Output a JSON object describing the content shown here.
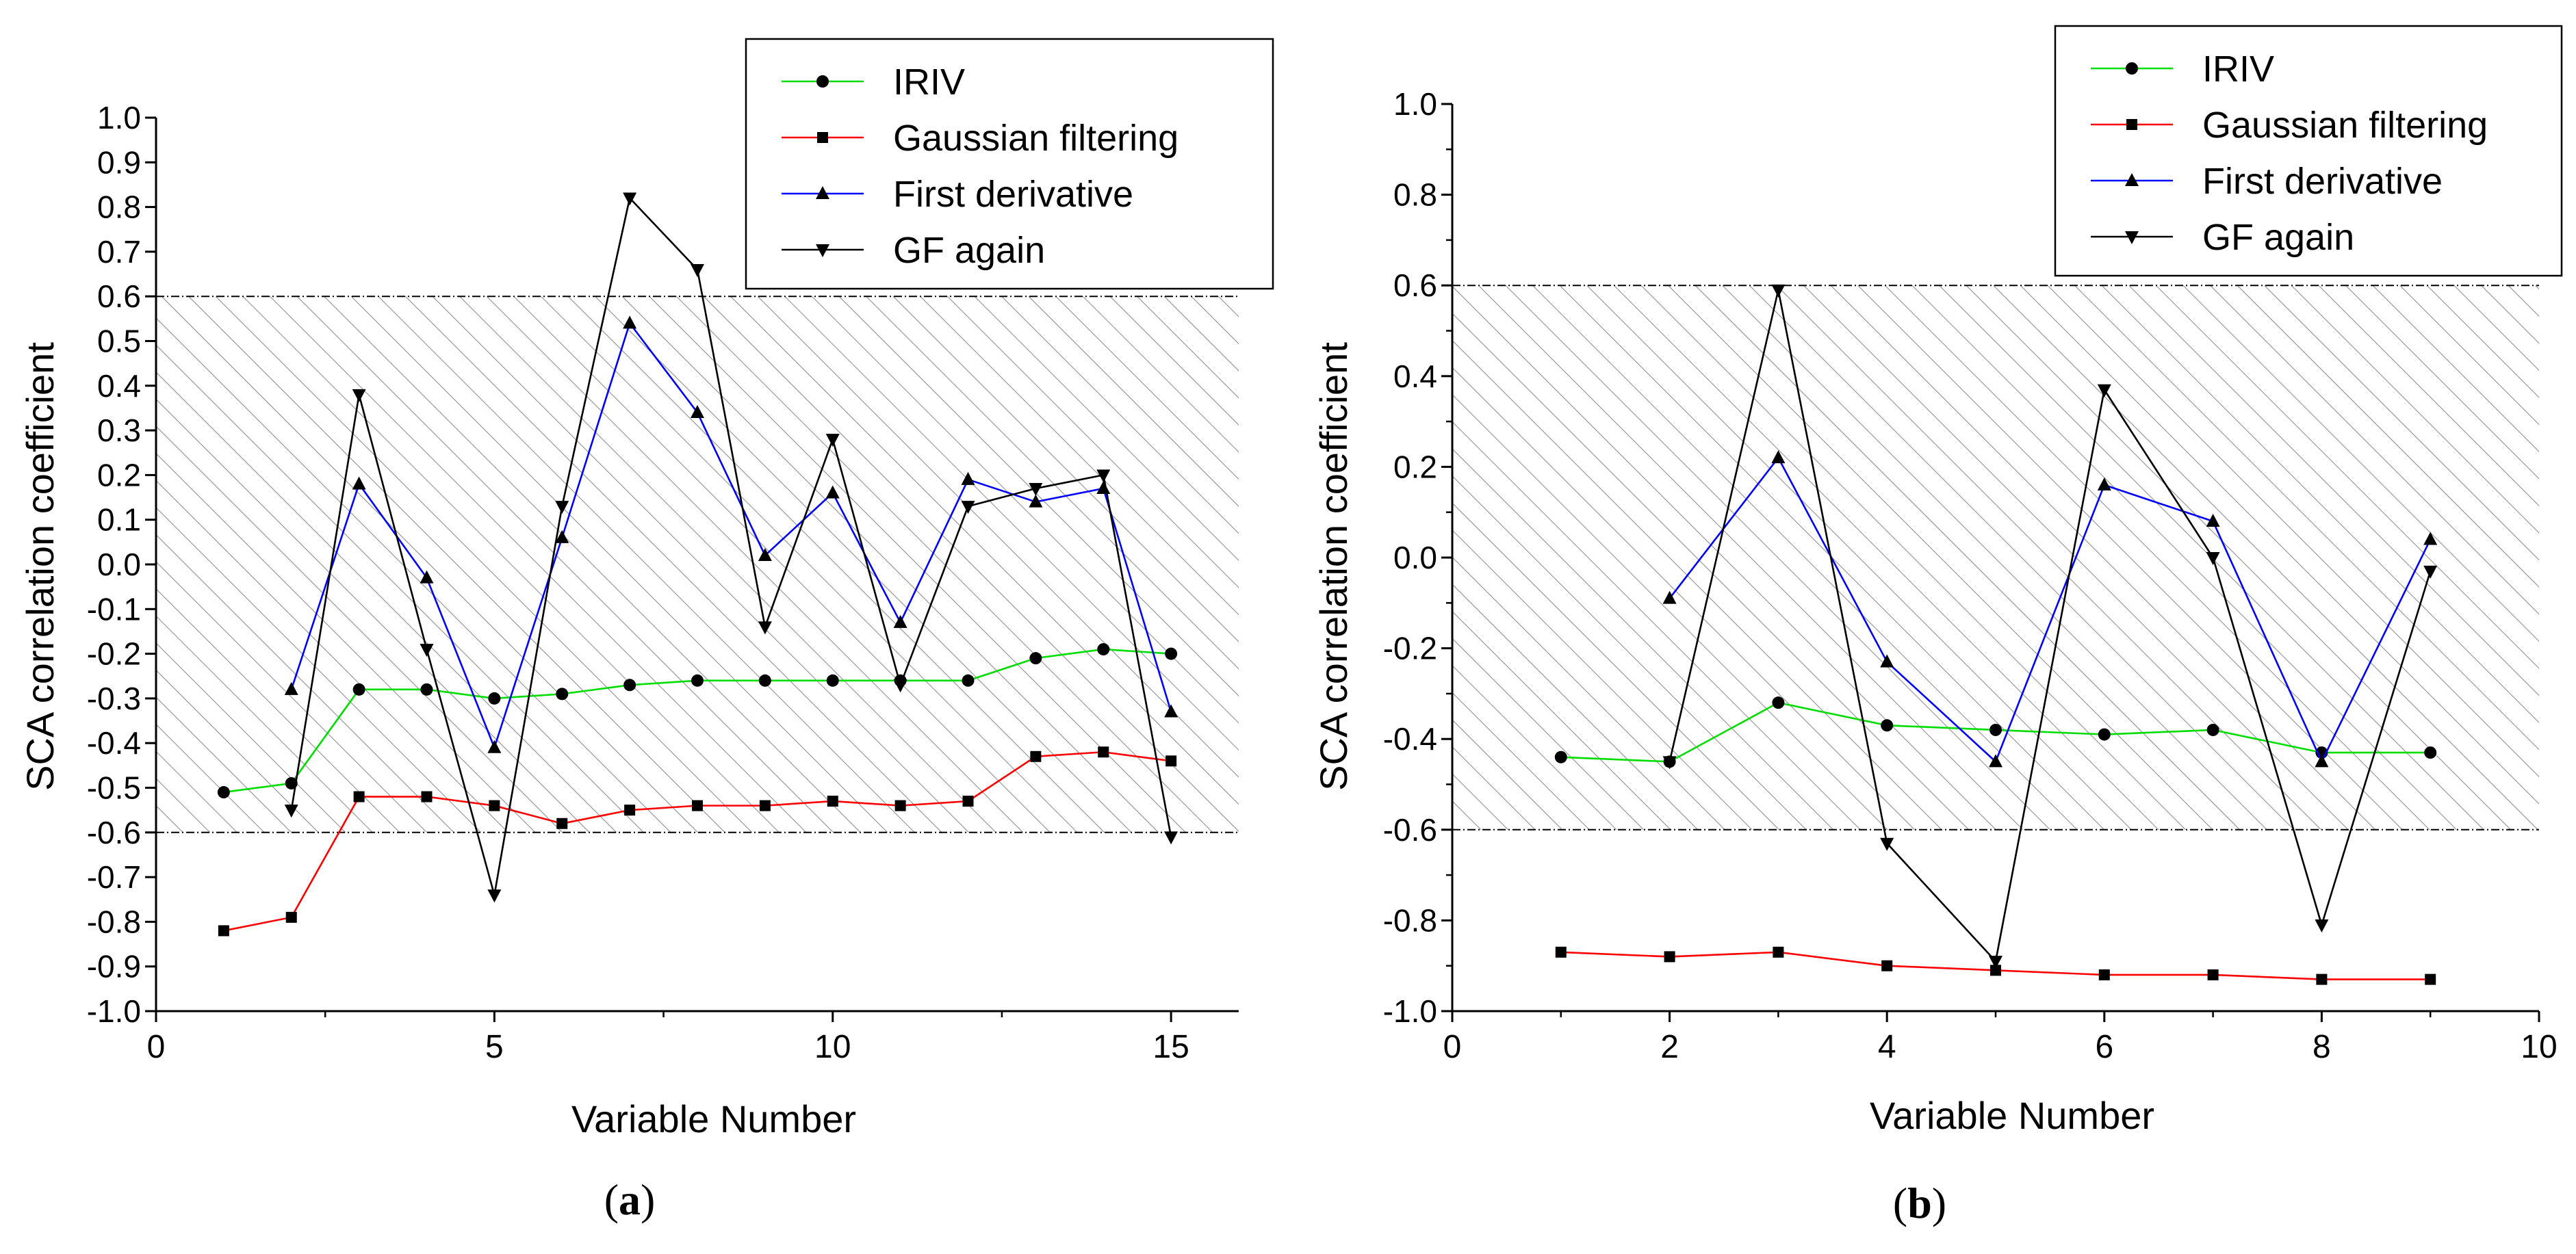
{
  "chart_data": [
    {
      "type": "line",
      "panel_label": "a",
      "xlabel": "Variable Number",
      "ylabel": "SCA correlation coefficient",
      "xlim": [
        0,
        16
      ],
      "ylim": [
        -1.0,
        1.0
      ],
      "xticks": [
        0,
        5,
        10,
        15
      ],
      "xtick_labels": [
        "0",
        "5",
        "10",
        "15"
      ],
      "yticks": [
        -1.0,
        -0.9,
        -0.8,
        -0.7,
        -0.6,
        -0.5,
        -0.4,
        -0.3,
        -0.2,
        -0.1,
        0.0,
        0.1,
        0.2,
        0.3,
        0.4,
        0.5,
        0.6,
        0.7,
        0.8,
        0.9,
        1.0
      ],
      "ytick_labels": [
        "-1.0",
        "-0.9",
        "-0.8",
        "-0.7",
        "-0.6",
        "-0.5",
        "-0.4",
        "-0.3",
        "-0.2",
        "-0.1",
        "0.0",
        "0.1",
        "0.2",
        "0.3",
        "0.4",
        "0.5",
        "0.6",
        "0.7",
        "0.8",
        "0.9",
        "1.0"
      ],
      "threshold_band": [
        -0.6,
        0.6
      ],
      "legend_position": "top-right",
      "series": [
        {
          "name": "IRIV",
          "color": "#00dd00",
          "marker": "circle",
          "x": [
            1,
            2,
            3,
            4,
            5,
            6,
            7,
            8,
            9,
            10,
            11,
            12,
            13,
            14,
            15
          ],
          "values": [
            -0.51,
            -0.49,
            -0.28,
            -0.28,
            -0.3,
            -0.29,
            -0.27,
            -0.26,
            -0.26,
            -0.26,
            -0.26,
            -0.26,
            -0.21,
            -0.19,
            -0.2
          ]
        },
        {
          "name": "Gaussian filtering",
          "color": "#ff0000",
          "marker": "square",
          "x": [
            1,
            2,
            3,
            4,
            5,
            6,
            7,
            8,
            9,
            10,
            11,
            12,
            13,
            14,
            15
          ],
          "values": [
            -0.82,
            -0.79,
            -0.52,
            -0.52,
            -0.54,
            -0.58,
            -0.55,
            -0.54,
            -0.54,
            -0.53,
            -0.54,
            -0.53,
            -0.43,
            -0.42,
            -0.44
          ]
        },
        {
          "name": "First derivative",
          "color": "#0000ff",
          "marker": "triangle-up",
          "x": [
            2,
            3,
            4,
            5,
            6,
            7,
            8,
            9,
            10,
            11,
            12,
            13,
            14,
            15
          ],
          "values": [
            -0.28,
            0.18,
            -0.03,
            -0.41,
            0.06,
            0.54,
            0.34,
            0.02,
            0.16,
            -0.13,
            0.19,
            0.14,
            0.17,
            -0.33
          ]
        },
        {
          "name": "GF again",
          "color": "#000000",
          "marker": "triangle-down",
          "x": [
            2,
            3,
            4,
            5,
            6,
            7,
            8,
            9,
            10,
            11,
            12,
            13,
            14,
            15
          ],
          "values": [
            -0.55,
            0.38,
            -0.19,
            -0.74,
            0.13,
            0.82,
            0.66,
            -0.14,
            0.28,
            -0.27,
            0.13,
            0.17,
            0.2,
            -0.61
          ]
        }
      ]
    },
    {
      "type": "line",
      "panel_label": "b",
      "xlabel": "Variable Number",
      "ylabel": "SCA correlation coefficient",
      "xlim": [
        0,
        10
      ],
      "ylim": [
        -1.0,
        1.0
      ],
      "xticks": [
        0,
        2,
        4,
        6,
        8,
        10
      ],
      "xtick_labels": [
        "0",
        "2",
        "4",
        "6",
        "8",
        "10"
      ],
      "yticks": [
        -1.0,
        -0.8,
        -0.6,
        -0.4,
        -0.2,
        0.0,
        0.2,
        0.4,
        0.6,
        0.8,
        1.0
      ],
      "ytick_labels": [
        "-1.0",
        "-0.8",
        "-0.6",
        "-0.4",
        "-0.2",
        "0.0",
        "0.2",
        "0.4",
        "0.6",
        "0.8",
        "1.0"
      ],
      "threshold_band": [
        -0.6,
        0.6
      ],
      "legend_position": "top-right",
      "series": [
        {
          "name": "IRIV",
          "color": "#00dd00",
          "marker": "circle",
          "x": [
            1,
            2,
            3,
            4,
            5,
            6,
            7,
            8,
            9
          ],
          "values": [
            -0.44,
            -0.45,
            -0.32,
            -0.37,
            -0.38,
            -0.39,
            -0.38,
            -0.43,
            -0.43
          ]
        },
        {
          "name": "Gaussian filtering",
          "color": "#ff0000",
          "marker": "square",
          "x": [
            1,
            2,
            3,
            4,
            5,
            6,
            7,
            8,
            9
          ],
          "values": [
            -0.87,
            -0.88,
            -0.87,
            -0.9,
            -0.91,
            -0.92,
            -0.92,
            -0.93,
            -0.93
          ]
        },
        {
          "name": "First derivative",
          "color": "#0000ff",
          "marker": "triangle-up",
          "x": [
            2,
            3,
            4,
            5,
            6,
            7,
            8,
            9
          ],
          "values": [
            -0.09,
            0.22,
            -0.23,
            -0.45,
            0.16,
            0.08,
            -0.45,
            0.04
          ]
        },
        {
          "name": "GF again",
          "color": "#000000",
          "marker": "triangle-down",
          "x": [
            2,
            3,
            4,
            5,
            6,
            7,
            8,
            9
          ],
          "values": [
            -0.45,
            0.59,
            -0.63,
            -0.89,
            0.37,
            0.0,
            -0.81,
            -0.03
          ]
        }
      ]
    }
  ]
}
